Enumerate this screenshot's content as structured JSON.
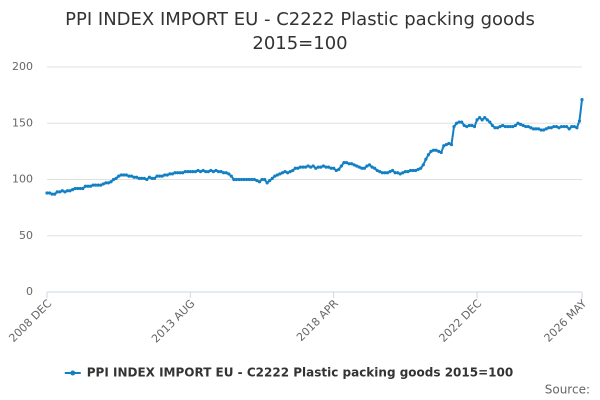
{
  "chart_data": {
    "type": "line",
    "title": "PPI INDEX IMPORT EU - C2222 Plastic packing goods 2015=100",
    "source_label": "Source:",
    "categories": [
      "2008 DEC",
      null,
      null,
      null,
      null,
      null,
      null,
      null,
      null,
      null,
      null,
      null,
      null,
      null,
      null,
      null,
      null,
      null,
      null,
      null,
      null,
      null,
      null,
      null,
      null,
      null,
      null,
      null,
      null,
      null,
      null,
      null,
      null,
      null,
      null,
      null,
      null,
      null,
      null,
      null,
      null,
      null,
      null,
      null,
      null,
      null,
      null,
      null,
      null,
      null,
      null,
      null,
      null,
      null,
      null,
      null,
      "2013 AUG",
      null,
      null,
      null,
      null,
      null,
      null,
      null,
      null,
      null,
      null,
      null,
      null,
      null,
      null,
      null,
      null,
      null,
      null,
      null,
      null,
      null,
      null,
      null,
      null,
      null,
      null,
      null,
      null,
      null,
      null,
      null,
      null,
      null,
      null,
      null,
      null,
      null,
      null,
      null,
      null,
      null,
      null,
      null,
      null,
      null,
      null,
      null,
      null,
      null,
      null,
      null,
      null,
      null,
      null,
      null,
      "2018 APR",
      null,
      null,
      null,
      null,
      null,
      null,
      null,
      null,
      null,
      null,
      null,
      null,
      null,
      null,
      null,
      null,
      null,
      null,
      null,
      null,
      null,
      null,
      null,
      null,
      null,
      null,
      null,
      null,
      null,
      null,
      null,
      null,
      null,
      null,
      null,
      null,
      null,
      null,
      null,
      null,
      null,
      null,
      null,
      null,
      null,
      null,
      null,
      null,
      null,
      null,
      null,
      null,
      null,
      null,
      null,
      "2022 DEC",
      null,
      null,
      null,
      null,
      null,
      null,
      null,
      null,
      null,
      null,
      null,
      null,
      null,
      null,
      null,
      null,
      null,
      null,
      null,
      null,
      null,
      null,
      null,
      null,
      null,
      null,
      null,
      null,
      null,
      null,
      null,
      null,
      null,
      null,
      null,
      null,
      null,
      null,
      null,
      null,
      "2026 MAY"
    ],
    "series": [
      {
        "name": "PPI INDEX IMPORT EU - C2222 Plastic packing goods 2015=100",
        "color": "#1380c4",
        "values": [
          88,
          88,
          87,
          87,
          89,
          89,
          90,
          89,
          90,
          90,
          91,
          92,
          92,
          92,
          92,
          94,
          94,
          94,
          95,
          95,
          95,
          95,
          96,
          97,
          97,
          98,
          100,
          101,
          103,
          104,
          104,
          104,
          103,
          103,
          102,
          102,
          101,
          101,
          101,
          100,
          102,
          101,
          101,
          103,
          103,
          103,
          104,
          104,
          105,
          105,
          106,
          106,
          106,
          106,
          107,
          107,
          107,
          107,
          107,
          108,
          107,
          108,
          107,
          107,
          108,
          107,
          108,
          107,
          107,
          106,
          106,
          105,
          103,
          100,
          100,
          100,
          100,
          100,
          100,
          100,
          100,
          100,
          99,
          98,
          100,
          100,
          97,
          99,
          101,
          103,
          104,
          105,
          106,
          107,
          106,
          107,
          108,
          110,
          110,
          111,
          111,
          111,
          112,
          111,
          112,
          110,
          111,
          111,
          112,
          111,
          111,
          110,
          110,
          108,
          109,
          112,
          115,
          115,
          114,
          114,
          113,
          112,
          111,
          110,
          110,
          112,
          113,
          111,
          110,
          108,
          107,
          106,
          106,
          106,
          107,
          108,
          106,
          106,
          105,
          106,
          107,
          107,
          108,
          108,
          108,
          109,
          110,
          113,
          118,
          122,
          125,
          126,
          126,
          125,
          124,
          130,
          131,
          132,
          131,
          147,
          150,
          151,
          151,
          148,
          147,
          148,
          148,
          147,
          153,
          155,
          153,
          155,
          153,
          151,
          148,
          146,
          146,
          147,
          148,
          147,
          147,
          147,
          147,
          148,
          150,
          149,
          148,
          147,
          147,
          146,
          145,
          145,
          145,
          144,
          144,
          145,
          146,
          146,
          147,
          147,
          146,
          147,
          147,
          147,
          145,
          147,
          147,
          146,
          152,
          171
        ]
      }
    ],
    "ylim": [
      0,
      200
    ],
    "yticks": [
      0,
      50,
      100,
      150,
      200
    ],
    "grid": true,
    "legend": "bottom"
  }
}
